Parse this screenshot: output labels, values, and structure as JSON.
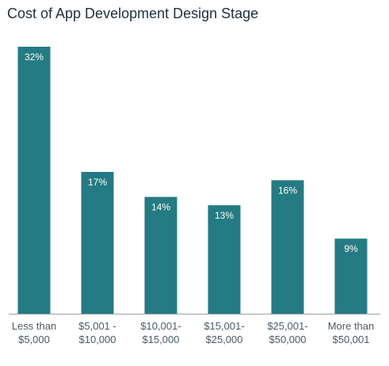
{
  "chart_data": {
    "type": "bar",
    "title": "Cost of App Development Design Stage",
    "categories": [
      [
        "Less than",
        "$5,000"
      ],
      [
        "$5,001 -",
        "$10,000"
      ],
      [
        "$10,001-",
        "$15,000"
      ],
      [
        "$15,001-",
        "$25,000"
      ],
      [
        "$25,001-",
        "$50,000"
      ],
      [
        "More than",
        "$50,001"
      ]
    ],
    "values": [
      32,
      17,
      14,
      13,
      16,
      9
    ],
    "value_labels": [
      "32%",
      "17%",
      "14%",
      "13%",
      "16%",
      "9%"
    ],
    "xlabel": "",
    "ylabel": "",
    "ylim": [
      0,
      32
    ],
    "grid": false,
    "legend": "none",
    "colors": {
      "bar": "#257b83",
      "axis": "#9aa4ab",
      "label_on_bar": "#ffffff",
      "tick_label": "#4a5a66",
      "title": "#1f2f3c"
    }
  }
}
